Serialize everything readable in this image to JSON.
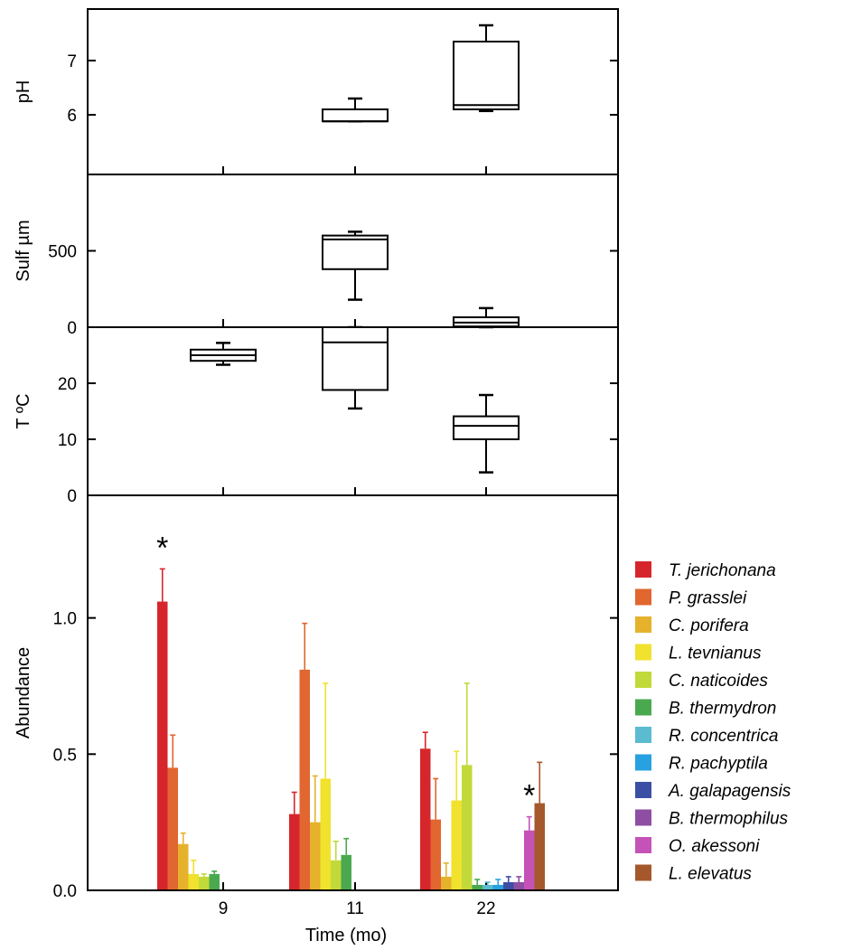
{
  "chart_data": {
    "type": "composite",
    "xlabel": "Time (mo)",
    "time_points": [
      "9",
      "11",
      "22"
    ],
    "panels": [
      {
        "id": "ph",
        "type": "box",
        "ylabel": "pH",
        "ylim": [
          4.9,
          7.95
        ],
        "yticks": [
          6,
          7
        ],
        "boxes": [
          {
            "x": "11",
            "whisker_low": 5.88,
            "q1": 5.88,
            "median": 5.88,
            "q3": 6.1,
            "whisker_high": 6.3
          },
          {
            "x": "22",
            "whisker_low": 6.07,
            "q1": 6.1,
            "median": 6.18,
            "q3": 7.35,
            "whisker_high": 7.65
          }
        ]
      },
      {
        "id": "sulf",
        "type": "box",
        "ylabel": "Sulf µm",
        "ylim": [
          0,
          1000
        ],
        "yticks": [
          0,
          500
        ],
        "boxes": [
          {
            "x": "11",
            "whisker_low": 180,
            "q1": 380,
            "median": 575,
            "q3": 600,
            "whisker_high": 625
          },
          {
            "x": "22",
            "whisker_low": 0,
            "q1": 5,
            "median": 30,
            "q3": 65,
            "whisker_high": 125
          }
        ]
      },
      {
        "id": "temp",
        "type": "box",
        "ylabel": "T ºC",
        "ylim": [
          0,
          30
        ],
        "yticks": [
          0,
          10,
          20
        ],
        "boxes": [
          {
            "x": "9",
            "whisker_low": 23.3,
            "q1": 24,
            "median": 25,
            "q3": 26,
            "whisker_high": 27.2
          },
          {
            "x": "11",
            "whisker_low": 15.5,
            "q1": 18.8,
            "median": 27.3,
            "q3": 30,
            "whisker_high": 30
          },
          {
            "x": "22",
            "whisker_low": 4.1,
            "q1": 10,
            "median": 12.4,
            "q3": 14.1,
            "whisker_high": 17.9
          }
        ]
      },
      {
        "id": "abundance",
        "type": "bar",
        "ylabel": "Abundance",
        "ylim": [
          0,
          1.45
        ],
        "yticks": [
          "0.0",
          "0.5",
          "1.0"
        ],
        "categories": [
          "9",
          "11",
          "22"
        ],
        "series": [
          {
            "name": "T. jerichonana",
            "color": "#d7262b",
            "values": [
              1.06,
              0.28,
              0.52
            ],
            "errors": [
              0.12,
              0.08,
              0.06
            ]
          },
          {
            "name": "P. grasslei",
            "color": "#e1662f",
            "values": [
              0.45,
              0.81,
              0.26
            ],
            "errors": [
              0.12,
              0.17,
              0.15
            ]
          },
          {
            "name": "C. porifera",
            "color": "#e6b22c",
            "values": [
              0.17,
              0.25,
              0.05
            ],
            "errors": [
              0.04,
              0.17,
              0.05
            ]
          },
          {
            "name": "L. tevnianus",
            "color": "#f0e22d",
            "values": [
              0.06,
              0.41,
              0.33
            ],
            "errors": [
              0.05,
              0.35,
              0.18
            ]
          },
          {
            "name": "C. naticoides",
            "color": "#c2d93a",
            "values": [
              0.05,
              0.11,
              0.46
            ],
            "errors": [
              0.01,
              0.07,
              0.3
            ]
          },
          {
            "name": "B. thermydron",
            "color": "#4aa94e",
            "values": [
              0.06,
              0.13,
              0.02
            ],
            "errors": [
              0.01,
              0.06,
              0.02
            ]
          },
          {
            "name": "R. concentrica",
            "color": "#5bbbd0",
            "values": [
              0.0,
              0.0,
              0.02
            ],
            "errors": [
              0.0,
              0.0,
              0.01
            ]
          },
          {
            "name": "R. pachyptila",
            "color": "#27a1e0",
            "values": [
              0.0,
              0.0,
              0.02
            ],
            "errors": [
              0.0,
              0.0,
              0.02
            ]
          },
          {
            "name": "A. galapagensis",
            "color": "#3b4fa4",
            "values": [
              0.0,
              0.0,
              0.03
            ],
            "errors": [
              0.0,
              0.0,
              0.02
            ]
          },
          {
            "name": "B. thermophilus",
            "color": "#8e4ea3",
            "values": [
              0.0,
              0.0,
              0.03
            ],
            "errors": [
              0.0,
              0.0,
              0.02
            ]
          },
          {
            "name": "O. akessoni",
            "color": "#c552b7",
            "values": [
              0.0,
              0.0,
              0.22
            ],
            "errors": [
              0.0,
              0.0,
              0.05
            ]
          },
          {
            "name": "L. elevatus",
            "color": "#a5582c",
            "values": [
              0.0,
              0.0,
              0.32
            ],
            "errors": [
              0.0,
              0.0,
              0.15
            ]
          }
        ],
        "annotations": [
          {
            "text": "*",
            "category": "9",
            "series": "T. jerichonana"
          },
          {
            "text": "*",
            "category": "22",
            "series": "O. akessoni"
          }
        ],
        "legend_position": "right"
      }
    ]
  }
}
